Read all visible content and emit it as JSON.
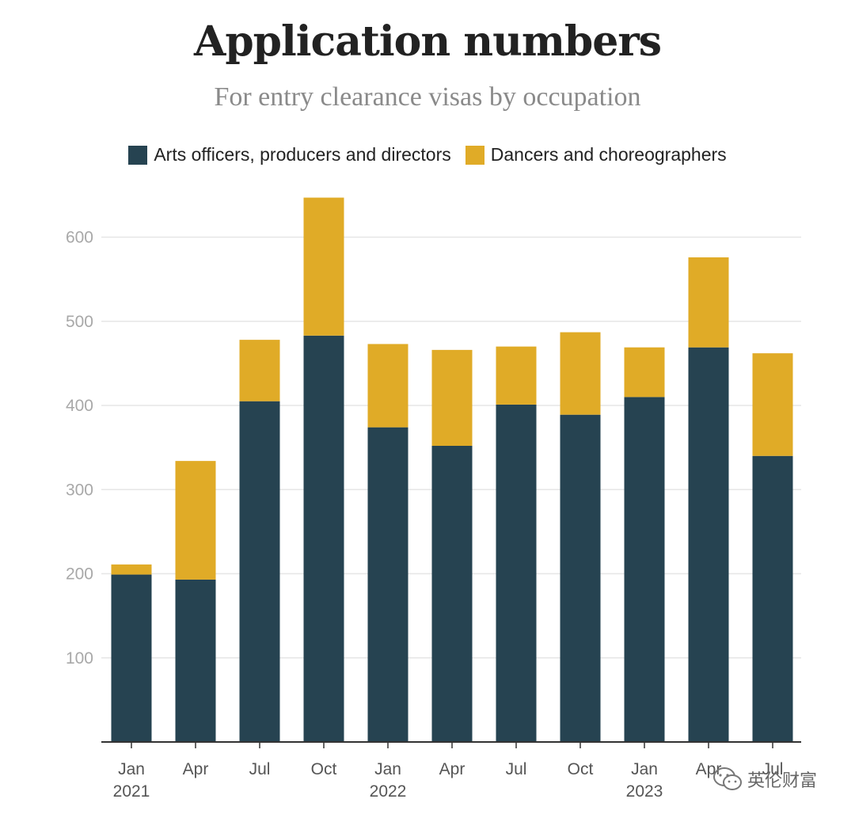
{
  "chart_data": {
    "type": "bar",
    "stacked": true,
    "title": "Application numbers",
    "subtitle": "For entry clearance visas by occupation",
    "categories": [
      "Jan 2021",
      "Apr 2021",
      "Jul 2021",
      "Oct 2021",
      "Jan 2022",
      "Apr 2022",
      "Jul 2022",
      "Oct 2022",
      "Jan 2023",
      "Apr 2023",
      "Jul 2023"
    ],
    "x_tick_labels": [
      {
        "month": "Jan",
        "year": "2021"
      },
      {
        "month": "Apr",
        "year": ""
      },
      {
        "month": "Jul",
        "year": ""
      },
      {
        "month": "Oct",
        "year": ""
      },
      {
        "month": "Jan",
        "year": "2022"
      },
      {
        "month": "Apr",
        "year": ""
      },
      {
        "month": "Jul",
        "year": ""
      },
      {
        "month": "Oct",
        "year": ""
      },
      {
        "month": "Jan",
        "year": "2023"
      },
      {
        "month": "Apr",
        "year": ""
      },
      {
        "month": "Jul",
        "year": ""
      }
    ],
    "series": [
      {
        "name": "Arts officers, producers and directors",
        "color": "#264351",
        "values": [
          199,
          193,
          405,
          483,
          374,
          352,
          401,
          389,
          410,
          469,
          340
        ]
      },
      {
        "name": "Dancers and choreographers",
        "color": "#e0ab27",
        "values": [
          12,
          141,
          73,
          164,
          99,
          114,
          69,
          98,
          59,
          107,
          122
        ]
      }
    ],
    "y_ticks": [
      100,
      200,
      300,
      400,
      500,
      600
    ],
    "ylim": [
      0,
      650
    ],
    "grid": true,
    "legend_position": "top-center",
    "xlabel": "",
    "ylabel": ""
  },
  "watermark": {
    "text": "英伦财富",
    "icon": "wechat-icon"
  }
}
